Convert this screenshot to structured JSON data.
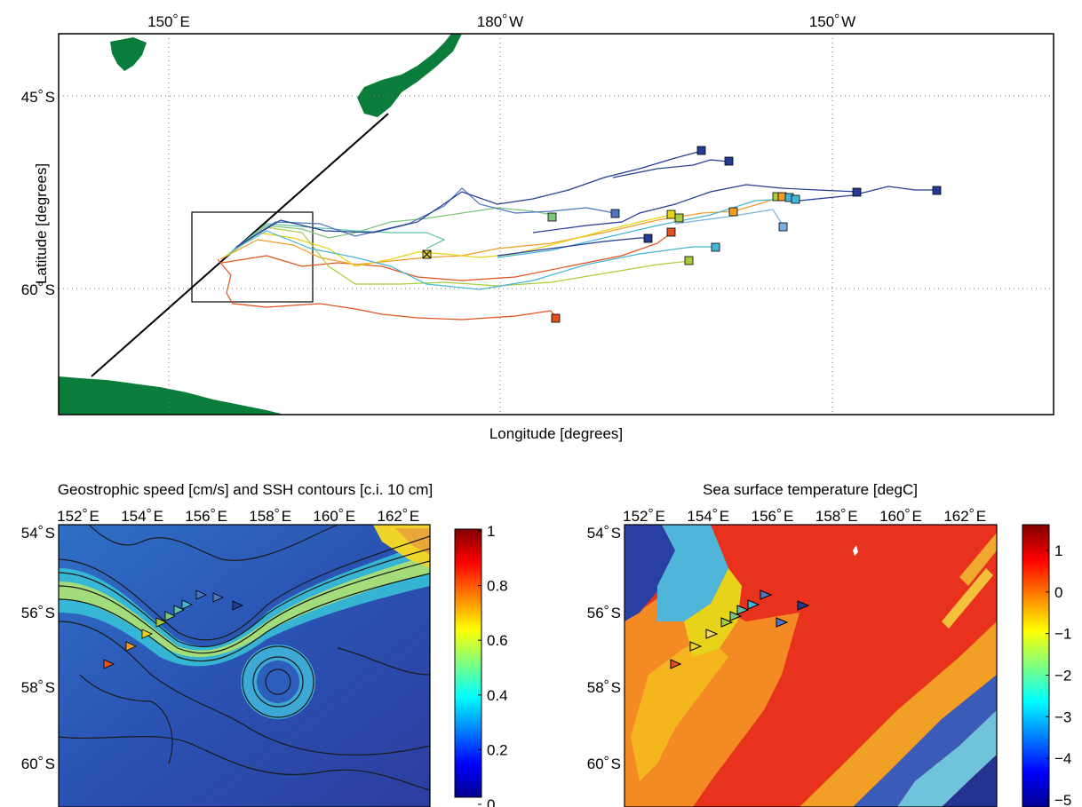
{
  "top_map": {
    "lon_ticks": [
      {
        "text": "150",
        "suffix": "E"
      },
      {
        "text": "180",
        "suffix": "W"
      },
      {
        "text": "150",
        "suffix": "W"
      }
    ],
    "lat_ticks": [
      {
        "text": "45",
        "suffix": "S"
      },
      {
        "text": "60",
        "suffix": "S"
      }
    ],
    "xlabel": "Longitude [degrees]",
    "ylabel": "Latitude [degrees]",
    "colors": {
      "land": "#0b7d3a",
      "deep_blue": "#233b93",
      "blue": "#4f74c2",
      "cyan": "#45b6d6",
      "green": "#7fc47b",
      "yellow": "#e7d31a",
      "orange": "#f39c26",
      "red": "#e2511d"
    }
  },
  "speed_panel": {
    "title": "Geostrophic speed [cm/s] and SSH contours [c.i. 10 cm]",
    "lon_ticks": [
      {
        "text": "152",
        "suffix": "E"
      },
      {
        "text": "154",
        "suffix": "E"
      },
      {
        "text": "156",
        "suffix": "E"
      },
      {
        "text": "158",
        "suffix": "E"
      },
      {
        "text": "160",
        "suffix": "E"
      },
      {
        "text": "162",
        "suffix": "E"
      }
    ],
    "lat_ticks": [
      {
        "text": "54",
        "suffix": "S"
      },
      {
        "text": "56",
        "suffix": "S"
      },
      {
        "text": "58",
        "suffix": "S"
      },
      {
        "text": "60",
        "suffix": "S"
      }
    ],
    "colorbar_ticks": [
      "1",
      "0.8",
      "0.6",
      "0.4",
      "0.2",
      "0"
    ],
    "colormap": "jet"
  },
  "sst_panel": {
    "title": "Sea surface temperature [degC]",
    "lon_ticks": [
      {
        "text": "152",
        "suffix": "E"
      },
      {
        "text": "154",
        "suffix": "E"
      },
      {
        "text": "156",
        "suffix": "E"
      },
      {
        "text": "158",
        "suffix": "E"
      },
      {
        "text": "160",
        "suffix": "E"
      },
      {
        "text": "162",
        "suffix": "E"
      }
    ],
    "lat_ticks": [
      {
        "text": "54",
        "suffix": "S"
      },
      {
        "text": "56",
        "suffix": "S"
      },
      {
        "text": "58",
        "suffix": "S"
      },
      {
        "text": "60",
        "suffix": "S"
      }
    ],
    "colorbar_ticks": [
      "1",
      "0",
      "−1",
      "−2",
      "−3",
      "−4",
      "−5"
    ],
    "colormap": "jet"
  }
}
